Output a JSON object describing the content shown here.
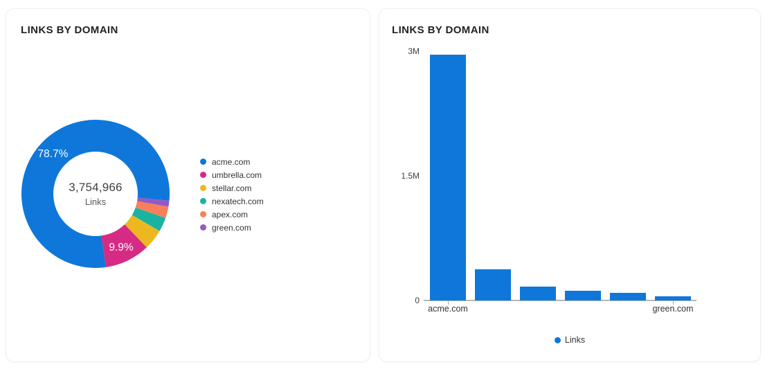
{
  "chart_data": [
    {
      "type": "pie",
      "donut": true,
      "title": "LINKS BY DOMAIN",
      "center_label": "3,754,966",
      "center_sublabel": "Links",
      "legend_position": "right",
      "slices": [
        {
          "name": "acme.com",
          "value": 2955158,
          "percent": 78.7,
          "label": "78.7%",
          "color": "#0e77d9"
        },
        {
          "name": "umbrella.com",
          "value": 371742,
          "percent": 9.9,
          "label": "9.9%",
          "color": "#d62b84"
        },
        {
          "name": "stellar.com",
          "value": 168973,
          "percent": 4.5,
          "label": "",
          "color": "#edb81f"
        },
        {
          "name": "nexatech.com",
          "value": 116404,
          "percent": 3.1,
          "label": "",
          "color": "#1ab3a1"
        },
        {
          "name": "apex.com",
          "value": 93874,
          "percent": 2.5,
          "label": "",
          "color": "#f87f5a"
        },
        {
          "name": "green.com",
          "value": 48815,
          "percent": 1.3,
          "label": "",
          "color": "#9559c6"
        }
      ],
      "layout": {
        "start_angle_deg": 172,
        "clockwise_order": [
          0,
          5,
          4,
          3,
          2,
          1
        ]
      }
    },
    {
      "type": "bar",
      "title": "LINKS BY DOMAIN",
      "series_name": "Links",
      "legend_label": "Links",
      "legend_position": "bottom",
      "color": "#0e77d9",
      "categories": [
        "acme.com",
        "umbrella.com",
        "stellar.com",
        "nexatech.com",
        "apex.com",
        "green.com"
      ],
      "values": [
        2955158,
        371742,
        168973,
        116404,
        93874,
        48815
      ],
      "ylim": [
        0,
        3000000
      ],
      "yticks": [
        {
          "label": "0",
          "value": 0
        },
        {
          "label": "1.5M",
          "value": 1500000
        },
        {
          "label": "3M",
          "value": 3000000
        }
      ],
      "x_tick_labels_shown": [
        "acme.com",
        "green.com"
      ],
      "grid": false
    }
  ]
}
